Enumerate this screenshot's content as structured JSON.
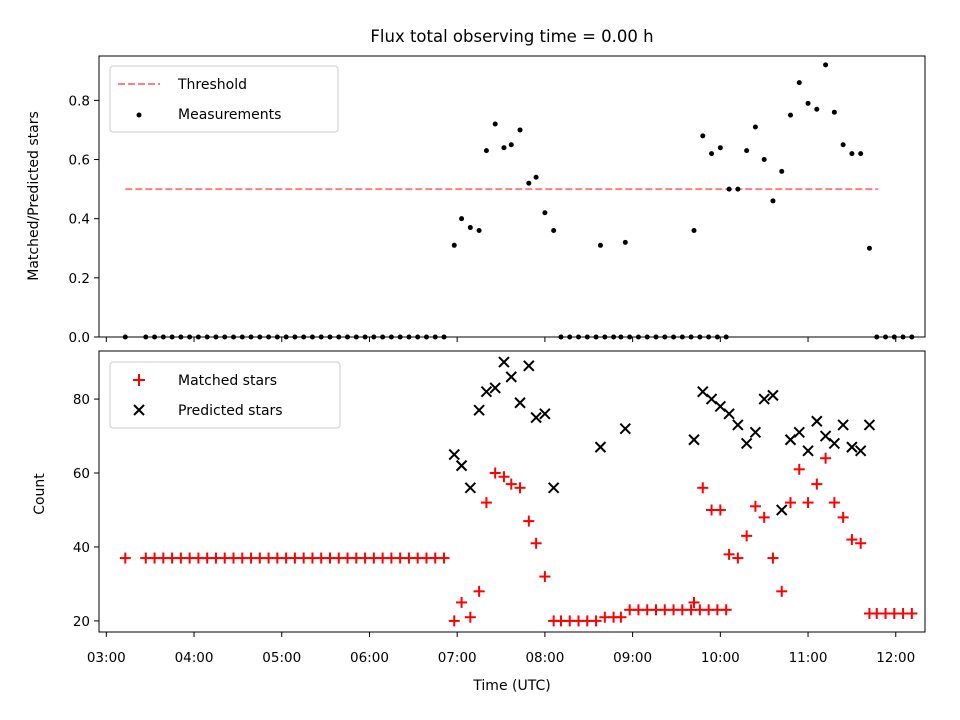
{
  "chart_data": [
    {
      "type": "scatter",
      "title": "Flux total observing time = 0.00 h",
      "xlabel": "",
      "ylabel": "Matched/Predicted stars",
      "ylim": [
        0,
        0.95
      ],
      "xlim": [
        "02:55",
        "12:20"
      ],
      "grid": false,
      "legend_position": "top-left",
      "yticks": [
        "0.0",
        "0.2",
        "0.4",
        "0.6",
        "0.8"
      ],
      "series": [
        {
          "name": "Threshold",
          "kind": "dashed-line",
          "color": "#ff7f7f",
          "x": [
            "03:13",
            "11:48"
          ],
          "y": [
            0.5,
            0.5
          ]
        },
        {
          "name": "Measurements",
          "kind": "dot",
          "color": "#000000",
          "points": [
            [
              "03:13",
              0
            ],
            [
              "03:27",
              0
            ],
            [
              "03:33",
              0
            ],
            [
              "03:39",
              0
            ],
            [
              "03:45",
              0
            ],
            [
              "03:51",
              0
            ],
            [
              "03:57",
              0
            ],
            [
              "04:03",
              0
            ],
            [
              "04:09",
              0
            ],
            [
              "04:15",
              0
            ],
            [
              "04:21",
              0
            ],
            [
              "04:27",
              0
            ],
            [
              "04:33",
              0
            ],
            [
              "04:39",
              0
            ],
            [
              "04:45",
              0
            ],
            [
              "04:51",
              0
            ],
            [
              "04:57",
              0
            ],
            [
              "05:03",
              0
            ],
            [
              "05:09",
              0
            ],
            [
              "05:15",
              0
            ],
            [
              "05:21",
              0
            ],
            [
              "05:27",
              0
            ],
            [
              "05:33",
              0
            ],
            [
              "05:39",
              0
            ],
            [
              "05:45",
              0
            ],
            [
              "05:51",
              0
            ],
            [
              "05:57",
              0
            ],
            [
              "06:03",
              0
            ],
            [
              "06:09",
              0
            ],
            [
              "06:15",
              0
            ],
            [
              "06:21",
              0
            ],
            [
              "06:27",
              0
            ],
            [
              "06:33",
              0
            ],
            [
              "06:39",
              0
            ],
            [
              "06:45",
              0
            ],
            [
              "06:51",
              0
            ],
            [
              "06:58",
              0.31
            ],
            [
              "07:03",
              0.4
            ],
            [
              "07:09",
              0.37
            ],
            [
              "07:15",
              0.36
            ],
            [
              "07:20",
              0.63
            ],
            [
              "07:26",
              0.72
            ],
            [
              "07:32",
              0.64
            ],
            [
              "07:37",
              0.65
            ],
            [
              "07:43",
              0.7
            ],
            [
              "07:49",
              0.52
            ],
            [
              "07:54",
              0.54
            ],
            [
              "08:00",
              0.42
            ],
            [
              "08:06",
              0.36
            ],
            [
              "08:11",
              0
            ],
            [
              "08:17",
              0
            ],
            [
              "08:23",
              0
            ],
            [
              "08:29",
              0
            ],
            [
              "08:35",
              0
            ],
            [
              "08:41",
              0
            ],
            [
              "08:47",
              0
            ],
            [
              "08:52",
              0
            ],
            [
              "08:58",
              0
            ],
            [
              "09:04",
              0
            ],
            [
              "09:10",
              0
            ],
            [
              "09:16",
              0
            ],
            [
              "09:22",
              0
            ],
            [
              "09:28",
              0
            ],
            [
              "09:34",
              0
            ],
            [
              "09:40",
              0
            ],
            [
              "09:46",
              0
            ],
            [
              "09:52",
              0
            ],
            [
              "09:58",
              0
            ],
            [
              "10:04",
              0
            ],
            [
              "08:38",
              0.31
            ],
            [
              "08:55",
              0.32
            ],
            [
              "09:42",
              0.36
            ],
            [
              "09:48",
              0.68
            ],
            [
              "09:54",
              0.62
            ],
            [
              "10:00",
              0.64
            ],
            [
              "10:06",
              0.5
            ],
            [
              "10:12",
              0.5
            ],
            [
              "10:18",
              0.63
            ],
            [
              "10:24",
              0.71
            ],
            [
              "10:30",
              0.6
            ],
            [
              "10:36",
              0.46
            ],
            [
              "10:42",
              0.56
            ],
            [
              "10:48",
              0.75
            ],
            [
              "10:54",
              0.86
            ],
            [
              "11:00",
              0.79
            ],
            [
              "11:06",
              0.77
            ],
            [
              "11:12",
              0.92
            ],
            [
              "11:18",
              0.76
            ],
            [
              "11:24",
              0.65
            ],
            [
              "11:30",
              0.62
            ],
            [
              "11:36",
              0.62
            ],
            [
              "11:42",
              0.3
            ],
            [
              "11:47",
              0
            ],
            [
              "11:53",
              0
            ],
            [
              "11:59",
              0
            ],
            [
              "12:05",
              0
            ],
            [
              "12:11",
              0
            ]
          ]
        }
      ]
    },
    {
      "type": "scatter",
      "title": "",
      "xlabel": "Time (UTC)",
      "ylabel": "Count",
      "ylim": [
        17,
        93
      ],
      "xlim": [
        "02:55",
        "12:20"
      ],
      "grid": false,
      "legend_position": "top-left",
      "yticks": [
        "20",
        "40",
        "60",
        "80"
      ],
      "xticks": [
        "03:00",
        "04:00",
        "05:00",
        "06:00",
        "07:00",
        "08:00",
        "09:00",
        "10:00",
        "11:00",
        "12:00"
      ],
      "series": [
        {
          "name": "Matched stars",
          "kind": "plus",
          "color": "#ff0000",
          "points": [
            [
              "03:13",
              37
            ],
            [
              "03:27",
              37
            ],
            [
              "03:33",
              37
            ],
            [
              "03:39",
              37
            ],
            [
              "03:45",
              37
            ],
            [
              "03:51",
              37
            ],
            [
              "03:57",
              37
            ],
            [
              "04:03",
              37
            ],
            [
              "04:09",
              37
            ],
            [
              "04:15",
              37
            ],
            [
              "04:21",
              37
            ],
            [
              "04:27",
              37
            ],
            [
              "04:33",
              37
            ],
            [
              "04:39",
              37
            ],
            [
              "04:45",
              37
            ],
            [
              "04:51",
              37
            ],
            [
              "04:57",
              37
            ],
            [
              "05:03",
              37
            ],
            [
              "05:09",
              37
            ],
            [
              "05:15",
              37
            ],
            [
              "05:21",
              37
            ],
            [
              "05:27",
              37
            ],
            [
              "05:33",
              37
            ],
            [
              "05:39",
              37
            ],
            [
              "05:45",
              37
            ],
            [
              "05:51",
              37
            ],
            [
              "05:57",
              37
            ],
            [
              "06:03",
              37
            ],
            [
              "06:09",
              37
            ],
            [
              "06:15",
              37
            ],
            [
              "06:21",
              37
            ],
            [
              "06:27",
              37
            ],
            [
              "06:33",
              37
            ],
            [
              "06:39",
              37
            ],
            [
              "06:45",
              37
            ],
            [
              "06:51",
              37
            ],
            [
              "06:58",
              20
            ],
            [
              "07:03",
              25
            ],
            [
              "07:09",
              21
            ],
            [
              "07:15",
              28
            ],
            [
              "07:20",
              52
            ],
            [
              "07:26",
              60
            ],
            [
              "07:32",
              59
            ],
            [
              "07:37",
              57
            ],
            [
              "07:43",
              56
            ],
            [
              "07:49",
              47
            ],
            [
              "07:54",
              41
            ],
            [
              "08:00",
              32
            ],
            [
              "08:06",
              20
            ],
            [
              "08:11",
              20
            ],
            [
              "08:17",
              20
            ],
            [
              "08:23",
              20
            ],
            [
              "08:29",
              20
            ],
            [
              "08:35",
              20
            ],
            [
              "08:41",
              21
            ],
            [
              "08:47",
              21
            ],
            [
              "08:52",
              21
            ],
            [
              "08:58",
              23
            ],
            [
              "09:04",
              23
            ],
            [
              "09:10",
              23
            ],
            [
              "09:16",
              23
            ],
            [
              "09:22",
              23
            ],
            [
              "09:28",
              23
            ],
            [
              "09:34",
              23
            ],
            [
              "09:40",
              23
            ],
            [
              "09:46",
              23
            ],
            [
              "09:52",
              23
            ],
            [
              "09:58",
              23
            ],
            [
              "10:04",
              23
            ],
            [
              "09:42",
              25
            ],
            [
              "09:48",
              56
            ],
            [
              "09:54",
              50
            ],
            [
              "10:00",
              50
            ],
            [
              "10:06",
              38
            ],
            [
              "10:12",
              37
            ],
            [
              "10:18",
              43
            ],
            [
              "10:24",
              51
            ],
            [
              "10:30",
              48
            ],
            [
              "10:36",
              37
            ],
            [
              "10:42",
              28
            ],
            [
              "10:48",
              52
            ],
            [
              "10:54",
              61
            ],
            [
              "11:00",
              52
            ],
            [
              "11:06",
              57
            ],
            [
              "11:12",
              64
            ],
            [
              "11:18",
              52
            ],
            [
              "11:24",
              48
            ],
            [
              "11:30",
              42
            ],
            [
              "11:36",
              41
            ],
            [
              "11:42",
              22
            ],
            [
              "11:47",
              22
            ],
            [
              "11:53",
              22
            ],
            [
              "11:59",
              22
            ],
            [
              "12:05",
              22
            ],
            [
              "12:11",
              22
            ]
          ]
        },
        {
          "name": "Predicted stars",
          "kind": "x",
          "color": "#000000",
          "points": [
            [
              "06:58",
              65
            ],
            [
              "07:03",
              62
            ],
            [
              "07:09",
              56
            ],
            [
              "07:15",
              77
            ],
            [
              "07:20",
              82
            ],
            [
              "07:26",
              83
            ],
            [
              "07:32",
              90
            ],
            [
              "07:37",
              86
            ],
            [
              "07:43",
              79
            ],
            [
              "07:49",
              89
            ],
            [
              "07:54",
              75
            ],
            [
              "08:00",
              76
            ],
            [
              "08:06",
              56
            ],
            [
              "08:38",
              67
            ],
            [
              "08:55",
              72
            ],
            [
              "09:42",
              69
            ],
            [
              "09:48",
              82
            ],
            [
              "09:54",
              80
            ],
            [
              "10:00",
              78
            ],
            [
              "10:06",
              76
            ],
            [
              "10:12",
              73
            ],
            [
              "10:18",
              68
            ],
            [
              "10:24",
              71
            ],
            [
              "10:30",
              80
            ],
            [
              "10:36",
              81
            ],
            [
              "10:42",
              50
            ],
            [
              "10:48",
              69
            ],
            [
              "10:54",
              71
            ],
            [
              "11:00",
              66
            ],
            [
              "11:06",
              74
            ],
            [
              "11:12",
              70
            ],
            [
              "11:18",
              68
            ],
            [
              "11:24",
              73
            ],
            [
              "11:30",
              67
            ],
            [
              "11:36",
              66
            ],
            [
              "11:42",
              73
            ]
          ]
        }
      ]
    }
  ]
}
